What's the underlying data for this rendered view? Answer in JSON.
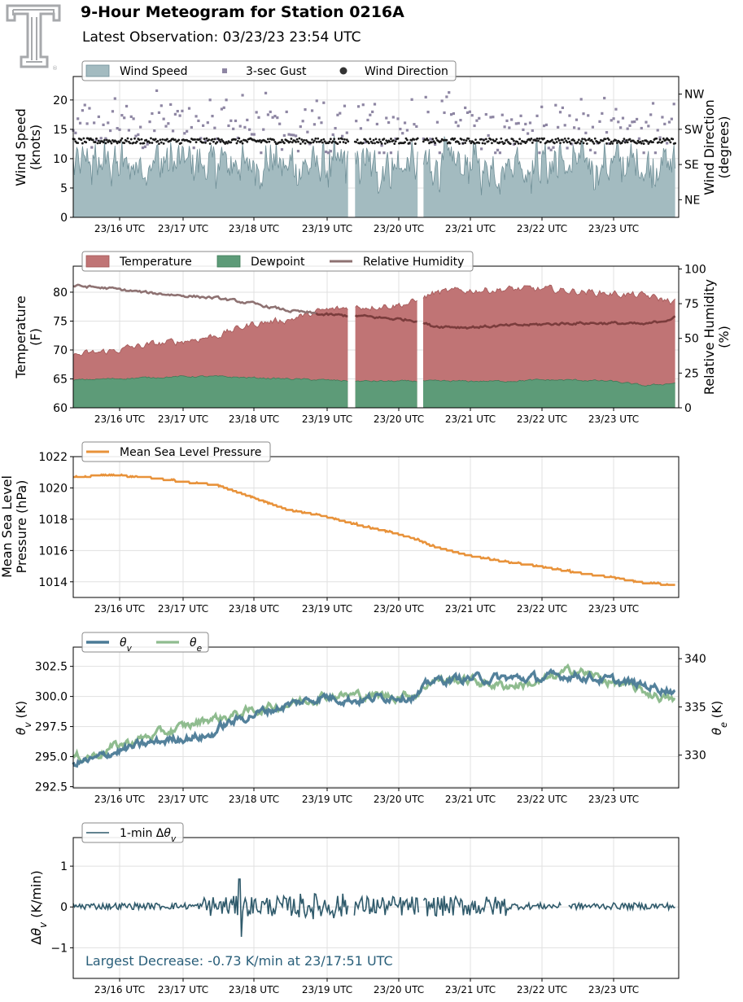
{
  "header": {
    "title": "9-Hour Meteogram for Station 0216A",
    "subtitle": "Latest Observation: 03/23/23 23:54 UTC"
  },
  "logo": {
    "icon": "texas-tech-double-t-logo",
    "color": "#a7a9ac",
    "mark": "®"
  },
  "colors": {
    "wind_fill": "#a3bbc0",
    "wind_edge": "#6f8f97",
    "gust": "#8e86a3",
    "direction": "#1a1a1a",
    "temperature": "#c07475",
    "dewpoint": "#5d9b78",
    "humidity": "#8e7272",
    "humidity_overlap": "#7a3c3c",
    "pressure": "#e8923a",
    "theta_v": "#4a7a96",
    "theta_e": "#8fbc8f",
    "dtheta": "#2f5a6b",
    "annotation": "#2a5f7a",
    "grid": "#e1e1e1"
  },
  "chart_data": [
    {
      "type": "area",
      "panel": "wind",
      "ylabel": [
        "Wind Speed",
        "(knots)"
      ],
      "ylabel_right": [
        "Wind Direction",
        "(degrees)"
      ],
      "ylim": [
        0,
        24
      ],
      "yticks": [
        0,
        5,
        10,
        15,
        20
      ],
      "right_ticks": [
        "NE",
        "SE",
        "SW",
        "NW"
      ],
      "right_tick_degrees": [
        45,
        135,
        225,
        315
      ],
      "right_lim": [
        0,
        360
      ],
      "xtick_labels": [
        "23/16 UTC",
        "23/17 UTC",
        "23/18 UTC",
        "23/19 UTC",
        "23/20 UTC",
        "23/21 UTC",
        "23/22 UTC",
        "23/23 UTC"
      ],
      "x_range_hours": [
        15.5,
        23.9
      ],
      "gaps_hours": [
        [
          19.35,
          19.42
        ],
        [
          20.32,
          20.38
        ]
      ],
      "legend": [
        "Wind Speed",
        "3-sec Gust",
        "Wind Direction"
      ],
      "legend_placement": "top-left",
      "series": [
        {
          "name": "Wind Speed",
          "typical": 9,
          "min": 3,
          "max": 16
        },
        {
          "name": "3-sec Gust",
          "typical": 15,
          "min": 11,
          "max": 22
        },
        {
          "name": "Wind Direction",
          "typical_degrees": 195,
          "spread": 10
        }
      ]
    },
    {
      "type": "area",
      "panel": "temperature",
      "ylabel": [
        "Temperature",
        "(F)"
      ],
      "ylabel_right": [
        "Relative Humidity",
        "(%)"
      ],
      "ylim": [
        60,
        84.5
      ],
      "yticks": [
        60,
        65,
        70,
        75,
        80
      ],
      "right_lim": [
        0,
        102
      ],
      "right_ticks": [
        0,
        25,
        50,
        75,
        100
      ],
      "xtick_labels": [
        "23/16 UTC",
        "23/17 UTC",
        "23/18 UTC",
        "23/19 UTC",
        "23/20 UTC",
        "23/21 UTC",
        "23/22 UTC",
        "23/23 UTC"
      ],
      "gaps_hours": [
        [
          19.35,
          19.42
        ],
        [
          20.32,
          20.38
        ]
      ],
      "legend": [
        "Temperature",
        "Dewpoint",
        "Relative Humidity"
      ],
      "legend_placement": "top-left",
      "series": [
        {
          "name": "Temperature",
          "x": [
            15.5,
            16,
            16.5,
            17,
            17.5,
            18,
            18.5,
            19,
            19.5,
            20,
            20.3,
            20.5,
            21,
            21.5,
            22,
            22.5,
            23,
            23.5,
            23.9
          ],
          "values": [
            69,
            69.8,
            70.8,
            71.5,
            72.5,
            74.5,
            75.3,
            76.8,
            77.5,
            77.8,
            78.3,
            79.8,
            80.3,
            80.5,
            80.5,
            80.2,
            79.8,
            79.3,
            78.3
          ]
        },
        {
          "name": "Dewpoint",
          "x": [
            15.5,
            16,
            16.5,
            17,
            17.5,
            18,
            18.5,
            19,
            19.5,
            20,
            20.5,
            21,
            21.5,
            22,
            22.5,
            23,
            23.5,
            23.9
          ],
          "values": [
            64.8,
            65,
            65.2,
            65.4,
            65.4,
            65.2,
            65,
            64.8,
            64.6,
            64.6,
            64.6,
            64.6,
            64.6,
            64.8,
            64.8,
            64.6,
            63.8,
            64.3
          ]
        },
        {
          "name": "Relative Humidity",
          "x": [
            15.5,
            16,
            16.5,
            17,
            17.5,
            18,
            18.5,
            19,
            19.5,
            20,
            20.3,
            20.5,
            21,
            21.5,
            22,
            22.5,
            23,
            23.5,
            23.9
          ],
          "values": [
            88,
            86,
            83,
            81,
            79,
            75,
            70,
            67,
            66,
            64,
            63,
            59,
            58,
            59,
            60,
            61,
            61,
            60,
            65
          ]
        }
      ]
    },
    {
      "type": "line",
      "panel": "pressure",
      "ylabel": [
        "Mean Sea Level",
        "Pressure (hPa)"
      ],
      "ylim": [
        1013,
        1022
      ],
      "yticks": [
        1014,
        1016,
        1018,
        1020,
        1022
      ],
      "xtick_labels": [
        "23/16 UTC",
        "23/17 UTC",
        "23/18 UTC",
        "23/19 UTC",
        "23/20 UTC",
        "23/21 UTC",
        "23/22 UTC",
        "23/23 UTC"
      ],
      "legend": [
        "Mean Sea Level Pressure"
      ],
      "legend_placement": "top-left",
      "series": [
        {
          "name": "Mean Sea Level Pressure",
          "x": [
            15.5,
            16,
            16.5,
            17,
            17.5,
            18,
            18.5,
            19,
            19.5,
            20,
            20.3,
            20.5,
            21,
            21.5,
            22,
            22.5,
            23,
            23.5,
            23.9
          ],
          "values": [
            1020.7,
            1020.8,
            1020.7,
            1020.4,
            1020.2,
            1019.4,
            1018.6,
            1018.2,
            1017.6,
            1017.1,
            1016.7,
            1016.3,
            1015.7,
            1015.3,
            1015.0,
            1014.6,
            1014.3,
            1013.9,
            1013.8
          ]
        }
      ]
    },
    {
      "type": "line",
      "panel": "theta",
      "ylabel": "θv (K)",
      "ylabel_right": "θe (K)",
      "ylim": [
        292.4,
        304.1
      ],
      "yticks": [
        292.5,
        295.0,
        297.5,
        300.0,
        302.5
      ],
      "ytick_labels": [
        "292.5",
        "295.0",
        "297.5",
        "300.0",
        "302.5"
      ],
      "right_lim": [
        326.6,
        341.2
      ],
      "right_ticks": [
        330,
        335,
        340
      ],
      "xtick_labels": [
        "23/16 UTC",
        "23/17 UTC",
        "23/18 UTC",
        "23/19 UTC",
        "23/20 UTC",
        "23/21 UTC",
        "23/22 UTC",
        "23/23 UTC"
      ],
      "legend": [
        "θv",
        "θe"
      ],
      "legend_placement": "top-left",
      "series": [
        {
          "name": "θv",
          "axis": "left",
          "x": [
            15.5,
            15.8,
            16,
            16.5,
            17,
            17.4,
            17.6,
            18,
            18.5,
            19,
            19.5,
            20,
            20.3,
            20.5,
            21,
            21.5,
            22,
            22.5,
            23,
            23.5,
            23.9
          ],
          "values": [
            294.5,
            294.7,
            295.3,
            296.0,
            296.6,
            296.7,
            297.6,
            298.5,
            299.3,
            300.0,
            299.7,
            300.1,
            300.0,
            301.3,
            301.5,
            301.5,
            301.5,
            301.8,
            301.3,
            300.9,
            300.5
          ]
        },
        {
          "name": "θe",
          "axis": "right",
          "x": [
            15.5,
            15.8,
            16,
            16.5,
            17,
            17.4,
            17.6,
            18,
            18.5,
            19,
            19.5,
            20,
            20.3,
            20.5,
            21,
            21.5,
            22,
            22.5,
            23,
            23.5,
            23.9
          ],
          "values": [
            329.7,
            330.0,
            330.7,
            331.8,
            332.8,
            333.8,
            333.9,
            334.6,
            335.3,
            336.2,
            336.2,
            336.1,
            336.4,
            337.8,
            337.8,
            337.2,
            337.5,
            338.9,
            337.6,
            336.5,
            335.6
          ]
        }
      ]
    },
    {
      "type": "line",
      "panel": "dtheta",
      "ylabel": "Δθv (K/min)",
      "ylim": [
        -1.75,
        1.7
      ],
      "yticks": [
        -1,
        0,
        1
      ],
      "ytick_labels": [
        "−1",
        "0",
        "1"
      ],
      "xtick_labels": [
        "23/16 UTC",
        "23/17 UTC",
        "23/18 UTC",
        "23/19 UTC",
        "23/20 UTC",
        "23/21 UTC",
        "23/22 UTC",
        "23/23 UTC"
      ],
      "legend": [
        "1-min Δθv"
      ],
      "legend_placement": "top-left",
      "annotation": "Largest Decrease: -0.73 K/min at 23/17:51 UTC",
      "series": [
        {
          "name": "1-min Δθv",
          "typical_amplitude": 0.1,
          "min": -0.73,
          "max": 0.68,
          "min_time": "23/17:51 UTC"
        }
      ]
    }
  ]
}
